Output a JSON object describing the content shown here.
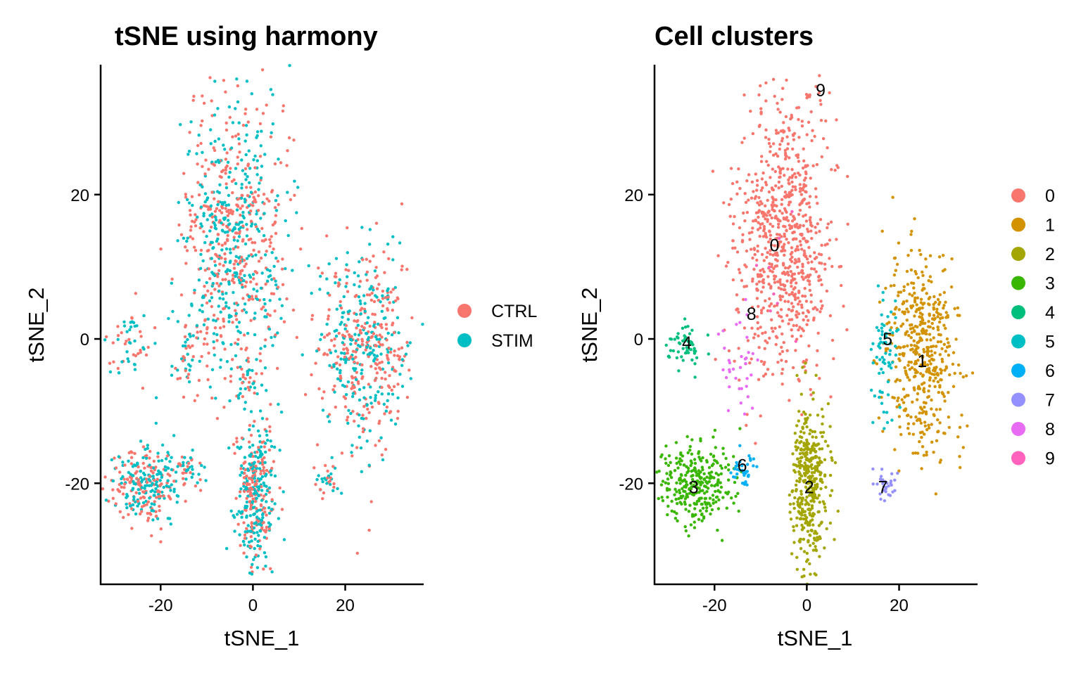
{
  "chart_data": [
    {
      "type": "scatter",
      "title": "tSNE using harmony",
      "xlabel": "tSNE_1",
      "ylabel": "tSNE_2",
      "xlim": [
        -33,
        37
      ],
      "ylim": [
        -34,
        38
      ],
      "xticks": [
        -20,
        0,
        20
      ],
      "xtick_labels": [
        "-20",
        "0",
        "20"
      ],
      "yticks": [
        -20,
        0,
        20
      ],
      "ytick_labels": [
        "-20",
        "0",
        "20"
      ],
      "grid": false,
      "legend_position": "right",
      "series": [
        {
          "name": "CTRL",
          "color": "#F8766D"
        },
        {
          "name": "STIM",
          "color": "#00BFC4"
        }
      ],
      "groups": [
        {
          "cx": -4,
          "cy": 14,
          "sx": 5.5,
          "sy": 10,
          "n": 760,
          "split": 0.55
        },
        {
          "cx": -26,
          "cy": -1,
          "sx": 2.5,
          "sy": 2.5,
          "n": 55,
          "split": 0.5
        },
        {
          "cx": -14,
          "cy": -3.5,
          "sx": 1.8,
          "sy": 2.5,
          "n": 40,
          "split": 0.5
        },
        {
          "cx": -1,
          "cy": -5.5,
          "sx": 1.3,
          "sy": 1.5,
          "n": 25,
          "split": 0.5
        },
        {
          "cx": 24,
          "cy": -1,
          "sx": 5,
          "sy": 7,
          "n": 520,
          "split": 0.55
        },
        {
          "cx": 16.5,
          "cy": -20,
          "sx": 1.2,
          "sy": 1.2,
          "n": 30,
          "split": 0.5
        },
        {
          "cx": -23,
          "cy": -20,
          "sx": 4,
          "sy": 2.5,
          "n": 300,
          "split": 0.5
        },
        {
          "cx": -14,
          "cy": -18,
          "sx": 1.6,
          "sy": 1.3,
          "n": 35,
          "split": 0.4
        },
        {
          "cx": 0.5,
          "cy": -21,
          "sx": 2,
          "sy": 5.5,
          "n": 380,
          "split": 0.45
        }
      ]
    },
    {
      "type": "scatter",
      "title": "Cell clusters",
      "xlabel": "tSNE_1",
      "ylabel": "tSNE_2",
      "xlim": [
        -33,
        37
      ],
      "ylim": [
        -34,
        38
      ],
      "xticks": [
        -20,
        0,
        20
      ],
      "xtick_labels": [
        "-20",
        "0",
        "20"
      ],
      "yticks": [
        -20,
        0,
        20
      ],
      "ytick_labels": [
        "-20",
        "0",
        "20"
      ],
      "grid": false,
      "legend_position": "right",
      "series": [
        {
          "name": "0",
          "color": "#F8766D"
        },
        {
          "name": "1",
          "color": "#D39200"
        },
        {
          "name": "2",
          "color": "#93AA00"
        },
        {
          "name": "3",
          "color": "#00BA38"
        },
        {
          "name": "4",
          "color": "#00C19F"
        },
        {
          "name": "5",
          "color": "#00B9E3"
        },
        {
          "name": "6",
          "color": "#619CFF"
        },
        {
          "name": "7",
          "color": "#DB72FB"
        },
        {
          "name": "8",
          "color": "#FF61C3"
        },
        {
          "name": "9",
          "color": "#FF61C3"
        }
      ],
      "plot_colors": [
        "#F8766D",
        "#D39200",
        "#A3A500",
        "#39B600",
        "#00BF7D",
        "#00BFC4",
        "#00B0F6",
        "#9590FF",
        "#E76BF3",
        "#FF62BC"
      ],
      "legend_colors": [
        "#F8766D",
        "#D39200",
        "#A3A500",
        "#39B600",
        "#00BF7D",
        "#00BFC4",
        "#00B0F6",
        "#9590FF",
        "#E76BF3",
        "#FF62BC"
      ],
      "clusters": [
        {
          "id": 0,
          "cx": -5,
          "cy": 14,
          "sx": 5.5,
          "sy": 10,
          "n": 780
        },
        {
          "id": 1,
          "cx": 25,
          "cy": -2,
          "sx": 4,
          "sy": 7,
          "n": 470
        },
        {
          "id": 2,
          "cx": 0.5,
          "cy": -20,
          "sx": 2,
          "sy": 5.5,
          "n": 400
        },
        {
          "id": 3,
          "cx": -24,
          "cy": -20,
          "sx": 4,
          "sy": 2.5,
          "n": 300
        },
        {
          "id": 4,
          "cx": -27,
          "cy": -1,
          "sx": 2,
          "sy": 1.8,
          "n": 55
        },
        {
          "id": 5,
          "cx": 17,
          "cy": -2,
          "sx": 1.5,
          "sy": 5,
          "n": 70
        },
        {
          "id": 6,
          "cx": -13.5,
          "cy": -18,
          "sx": 1.5,
          "sy": 1.2,
          "n": 35
        },
        {
          "id": 7,
          "cx": 17,
          "cy": -20,
          "sx": 1.1,
          "sy": 1.1,
          "n": 30
        },
        {
          "id": 8,
          "cx": -14,
          "cy": -4,
          "sx": 1.8,
          "sy": 3.5,
          "n": 35
        },
        {
          "id": 9,
          "cx": -6,
          "cy": 10,
          "sx": 4,
          "sy": 10,
          "n": 8
        }
      ],
      "annotations": [
        {
          "text": "0",
          "x": -7,
          "y": 13
        },
        {
          "text": "1",
          "x": 25,
          "y": -3
        },
        {
          "text": "2",
          "x": 0.5,
          "y": -20.5
        },
        {
          "text": "3",
          "x": -24.5,
          "y": -20.5
        },
        {
          "text": "4",
          "x": -26,
          "y": -0.5
        },
        {
          "text": "5",
          "x": 17.5,
          "y": 0
        },
        {
          "text": "6",
          "x": -14,
          "y": -17.5
        },
        {
          "text": "7",
          "x": 16.5,
          "y": -20.5
        },
        {
          "text": "8",
          "x": -12,
          "y": 3.5
        },
        {
          "text": "9",
          "x": 3,
          "y": 34.5
        }
      ]
    }
  ]
}
